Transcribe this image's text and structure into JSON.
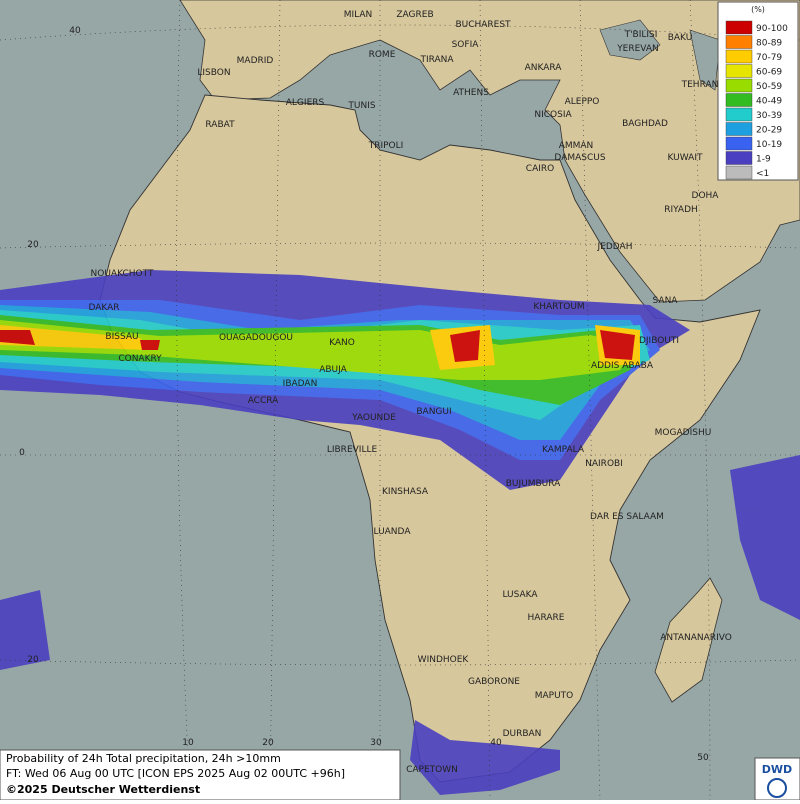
{
  "legend": {
    "unit": "(%)",
    "entries": [
      {
        "label": "90-100",
        "color": "#cc0000"
      },
      {
        "label": "80-89",
        "color": "#ff7f00"
      },
      {
        "label": "70-79",
        "color": "#ffcc00"
      },
      {
        "label": "60-69",
        "color": "#e5e500"
      },
      {
        "label": "50-59",
        "color": "#99dd00"
      },
      {
        "label": "40-49",
        "color": "#33bb22"
      },
      {
        "label": "30-39",
        "color": "#22cccc"
      },
      {
        "label": "20-29",
        "color": "#1ea0e0"
      },
      {
        "label": "10-19",
        "color": "#3a62f0"
      },
      {
        "label": "1-9",
        "color": "#4a3fc0"
      },
      {
        "label": "<1",
        "color": "#bbbbbb"
      }
    ]
  },
  "cities": [
    "MILAN",
    "ZAGREB",
    "BUCHAREST",
    "SOFIA",
    "ROME",
    "TIRANA",
    "ATHENS",
    "ANKARA",
    "T'BILISI",
    "YEREVAN",
    "BAKU",
    "TEHRAN",
    "MADRID",
    "LISBON",
    "ALGIERS",
    "TUNIS",
    "RABAT",
    "TRIPOLI",
    "NICOSIA",
    "ALEPPO",
    "DAMASCUS",
    "AMMAN",
    "BAGHDAD",
    "CAIRO",
    "KUWAIT",
    "DOHA",
    "RIYADH",
    "JEDDAH",
    "SANA",
    "NOUAKCHOTT",
    "DAKAR",
    "BISSAU",
    "CONAKRY",
    "OUAGADOUGOU",
    "KANO",
    "ABUJA",
    "IBADAN",
    "ACCRA",
    "KHARTOUM",
    "DJIBOUTI",
    "ADDIS ABABA",
    "YAOUNDE",
    "BANGUI",
    "LIBREVILLE",
    "MOGADISHU",
    "KAMPALA",
    "NAIROBI",
    "BUJUMBURA",
    "KINSHASA",
    "DAR ES SALAAM",
    "LUANDA",
    "LUSAKA",
    "HARARE",
    "ANTANANARIVO",
    "WINDHOEK",
    "GABORONE",
    "MAPUTO",
    "DURBAN",
    "CAPETOWN"
  ],
  "graticule": [
    "40",
    "20",
    "0",
    "20",
    "10",
    "20",
    "30",
    "40",
    "50"
  ],
  "footer": [
    "Probability of 24h Total precipitation, 24h >10mm",
    "FT: Wed 06 Aug 00 UTC [ICON EPS 2025 Aug 02 00UTC +96h]",
    "©2025 Deutscher Wetterdienst"
  ],
  "logo": "DWD"
}
